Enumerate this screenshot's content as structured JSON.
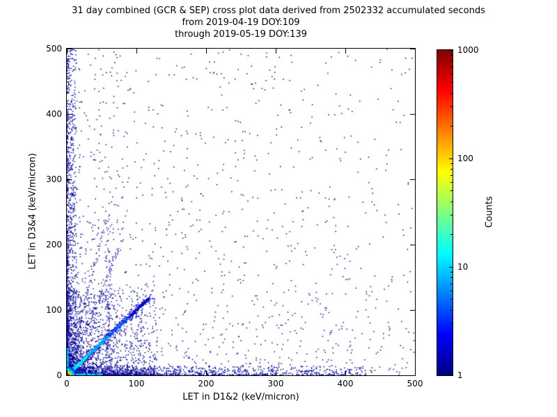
{
  "chart_data": {
    "type": "scatter",
    "title": [
      "31 day combined (GCR & SEP) cross plot data derived from 2502332 accumulated seconds",
      "from 2019-04-19 DOY:109",
      "through 2019-05-19 DOY:139"
    ],
    "accumulated_seconds": 2502332,
    "date_start": "2019-04-19",
    "doy_start": 109,
    "date_end": "2019-05-19",
    "doy_end": 139,
    "xlabel": "LET in D1&2 (keV/micron)",
    "ylabel": "LET in D3&4 (keV/micron)",
    "xlim": [
      0,
      500
    ],
    "ylim": [
      0,
      500
    ],
    "x_ticks": [
      0,
      100,
      200,
      300,
      400,
      500
    ],
    "y_ticks": [
      0,
      100,
      200,
      300,
      400,
      500
    ],
    "grid": false,
    "legend": "none",
    "colorbar": {
      "label": "Counts",
      "scale": "log",
      "range": [
        1,
        1000
      ],
      "ticks": [
        1,
        10,
        100,
        1000
      ],
      "minor_ticks_per_decade": [
        2,
        3,
        4,
        5,
        6,
        7,
        8,
        9
      ],
      "colormap": "jet",
      "stops": [
        {
          "pos": 0.0,
          "color": "#000080"
        },
        {
          "pos": 0.125,
          "color": "#0000ff"
        },
        {
          "pos": 0.375,
          "color": "#00ffff"
        },
        {
          "pos": 0.625,
          "color": "#ffff00"
        },
        {
          "pos": 0.875,
          "color": "#ff0000"
        },
        {
          "pos": 1.0,
          "color": "#800000"
        }
      ]
    },
    "description": "2D density cross plot (log-color-scaled 2D histogram). Counts peak near the origin (dark red ~1000 counts at LET<3), with a bright cyan proton diagonal from the origin to ~(115,115), dense dark-blue bands hugging both axes, faint steep rays and a vertical streak near x~60, and a sparse dark-blue field (1-2 counts) thinning out toward 500 on both axes.",
    "seed": 20190419,
    "density_features": [
      {
        "type": "powerlaw",
        "name": "sparse-field",
        "count": 1600,
        "x_scale": 500,
        "x_pow": 2.0,
        "y_scale": 500,
        "y_pow": 1.7,
        "color": "#000088",
        "size": 1.5
      },
      {
        "type": "powerlaw",
        "name": "low-cloud",
        "count": 1600,
        "x_scale": 130,
        "x_pow": 2.2,
        "y_scale": 130,
        "y_pow": 2.2,
        "color": "#000092",
        "size": 1.5
      },
      {
        "type": "powerlaw",
        "name": "bottom-band",
        "count": 1400,
        "x_scale": 430,
        "x_pow": 2.6,
        "y_scale": 14,
        "y_pow": 2.2,
        "color": "#0000a0",
        "size": 1.5
      },
      {
        "type": "powerlaw",
        "name": "left-band",
        "count": 1000,
        "x_scale": 14,
        "x_pow": 2.2,
        "y_scale": 500,
        "y_pow": 1.6,
        "color": "#0000a0",
        "size": 1.5
      },
      {
        "type": "diagonal",
        "name": "diagonal-halo",
        "count": 450,
        "length": 118,
        "t_pow": 1.4,
        "jitter": 7.0,
        "size": 1.5,
        "color_stops": [
          {
            "t": 1.01,
            "color": "#0000b0"
          }
        ]
      },
      {
        "type": "diagonal",
        "name": "proton-diagonal",
        "count": 900,
        "length": 118,
        "t_pow": 1.6,
        "jitter": 2.0,
        "size": 1.6,
        "color_stops": [
          {
            "t": 0.25,
            "color": "#00e8ff"
          },
          {
            "t": 0.5,
            "color": "#00aaff"
          },
          {
            "t": 0.75,
            "color": "#0055ff"
          },
          {
            "t": 1.01,
            "color": "#0000d0"
          }
        ]
      },
      {
        "type": "ray",
        "name": "ray-steep",
        "count": 160,
        "slope": 2.6,
        "x_max": 75,
        "x_pow": 1.6,
        "jitter": 3,
        "color": "#000095",
        "size": 1.4
      },
      {
        "type": "ray",
        "name": "ray-steeper",
        "count": 110,
        "slope": 4.2,
        "x_max": 55,
        "x_pow": 1.6,
        "jitter": 3,
        "color": "#000095",
        "size": 1.4
      },
      {
        "type": "vstrip",
        "name": "vertical-streak",
        "count": 140,
        "x_center": 60,
        "x_jitter": 5,
        "y_max": 245,
        "y_pow": 1.5,
        "color": "#000095",
        "size": 1.4
      },
      {
        "type": "powerlaw",
        "name": "bottom-hot-strip",
        "count": 260,
        "x_scale": 50,
        "x_pow": 2.0,
        "y_scale": 2.5,
        "y_pow": 1.0,
        "color": "#00c8ff",
        "size": 1.3
      },
      {
        "type": "powerlaw",
        "name": "left-hot-strip",
        "count": 180,
        "x_scale": 2.5,
        "x_pow": 1.0,
        "y_scale": 42,
        "y_pow": 2.0,
        "color": "#00c8ff",
        "size": 1.3
      },
      {
        "type": "blob_jet",
        "name": "origin-hotspot",
        "count": 900,
        "r_max": 13,
        "r_pow": 1.7,
        "size": 1.6,
        "radial_colors": [
          {
            "r": 2.0,
            "color": "#b00000"
          },
          {
            "r": 3.5,
            "color": "#ff5500"
          },
          {
            "r": 5.0,
            "color": "#ffd000"
          },
          {
            "r": 7.0,
            "color": "#66ff33"
          },
          {
            "r": 9.0,
            "color": "#00e6a8"
          },
          {
            "r": 11.0,
            "color": "#00b4ff"
          },
          {
            "r": 99.0,
            "color": "#0040ff"
          }
        ]
      }
    ]
  }
}
